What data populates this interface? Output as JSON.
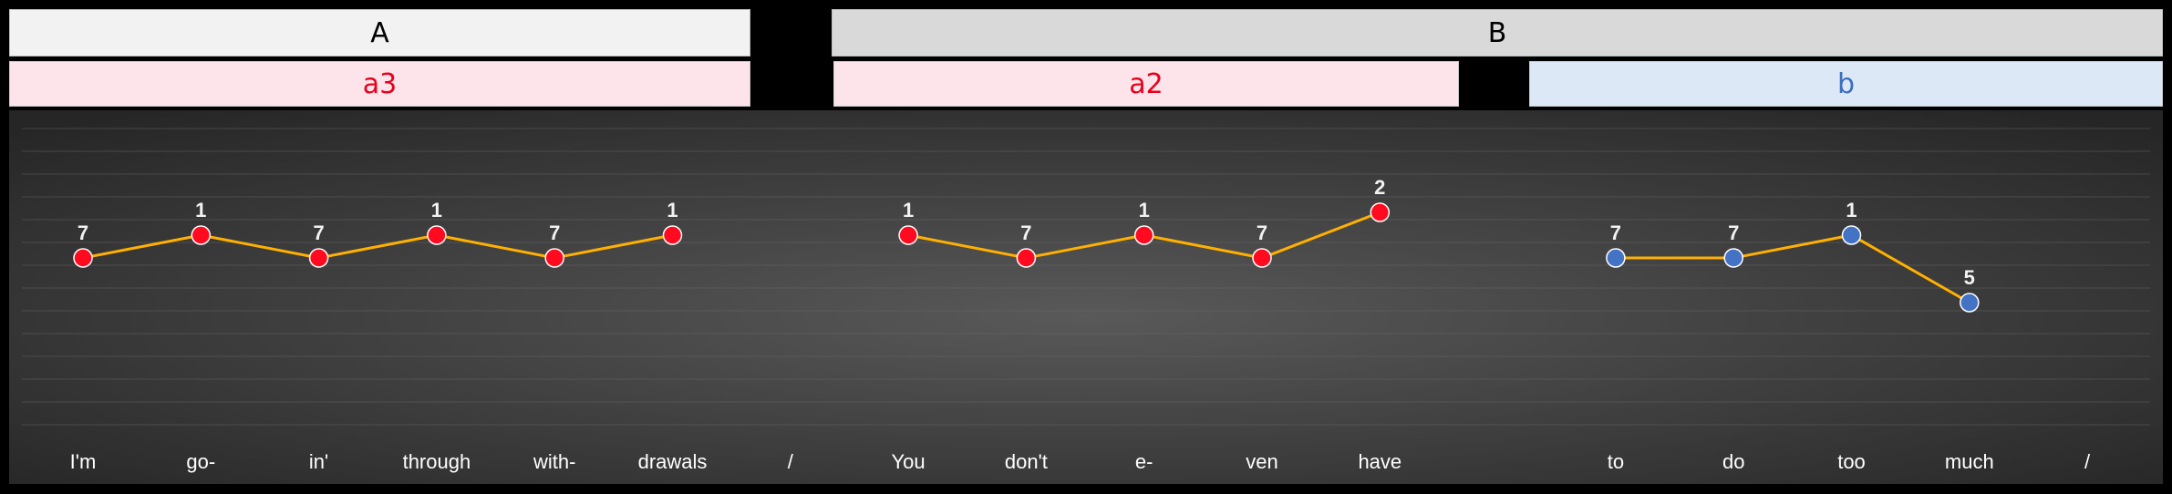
{
  "sections": {
    "a_label": "A",
    "b_label": "B",
    "sub_a3": "a3",
    "sub_a2": "a2",
    "sub_b": "b"
  },
  "colors": {
    "red_points": "#ff0a1e",
    "blue_points": "#4472c4",
    "line": "#f4b183",
    "line_stroke": "#ffb000",
    "label_text": "#ffffff",
    "section_a_bg": "#f2f2f2",
    "section_b_bg": "#d9d9d9",
    "sub_red_bg": "#fde4ea",
    "sub_blue_bg": "#dce8f5"
  },
  "chart_data": {
    "type": "line",
    "categories": [
      "I'm",
      "go-",
      "in'",
      "through",
      "with-",
      "drawals",
      "/",
      "You",
      "don't",
      "e-",
      "ven",
      "have",
      "",
      "to",
      "do",
      "too",
      "much",
      "/"
    ],
    "values": [
      7,
      1,
      7,
      1,
      7,
      1,
      null,
      1,
      7,
      1,
      7,
      2,
      null,
      7,
      7,
      1,
      5,
      null
    ],
    "point_colors": [
      "red",
      "red",
      "red",
      "red",
      "red",
      "red",
      null,
      "red",
      "red",
      "red",
      "red",
      "red",
      null,
      "blue",
      "blue",
      "blue",
      "blue",
      null
    ],
    "segments": [
      [
        0,
        5
      ],
      [
        7,
        11
      ],
      [
        13,
        16
      ]
    ],
    "grid": true
  }
}
